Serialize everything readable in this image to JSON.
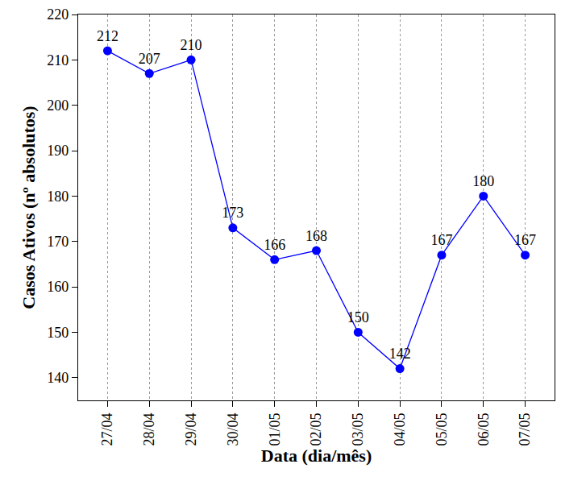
{
  "chart_data": {
    "type": "line",
    "x_label": "Data (dia/mês)",
    "y_label": "Casos Ativos (nº absolutos)",
    "categories": [
      "27/04",
      "28/04",
      "29/04",
      "30/04",
      "01/05",
      "02/05",
      "03/05",
      "04/05",
      "05/05",
      "06/05",
      "07/05"
    ],
    "values": [
      212,
      207,
      210,
      173,
      166,
      168,
      150,
      142,
      167,
      180,
      167
    ],
    "color": "#0000ff",
    "marker": "circle",
    "line_style": "solid",
    "data_labels": true,
    "grid": true,
    "ylim": [
      135,
      220
    ],
    "yticks": [
      140,
      150,
      160,
      170,
      180,
      190,
      200,
      210,
      220
    ]
  }
}
